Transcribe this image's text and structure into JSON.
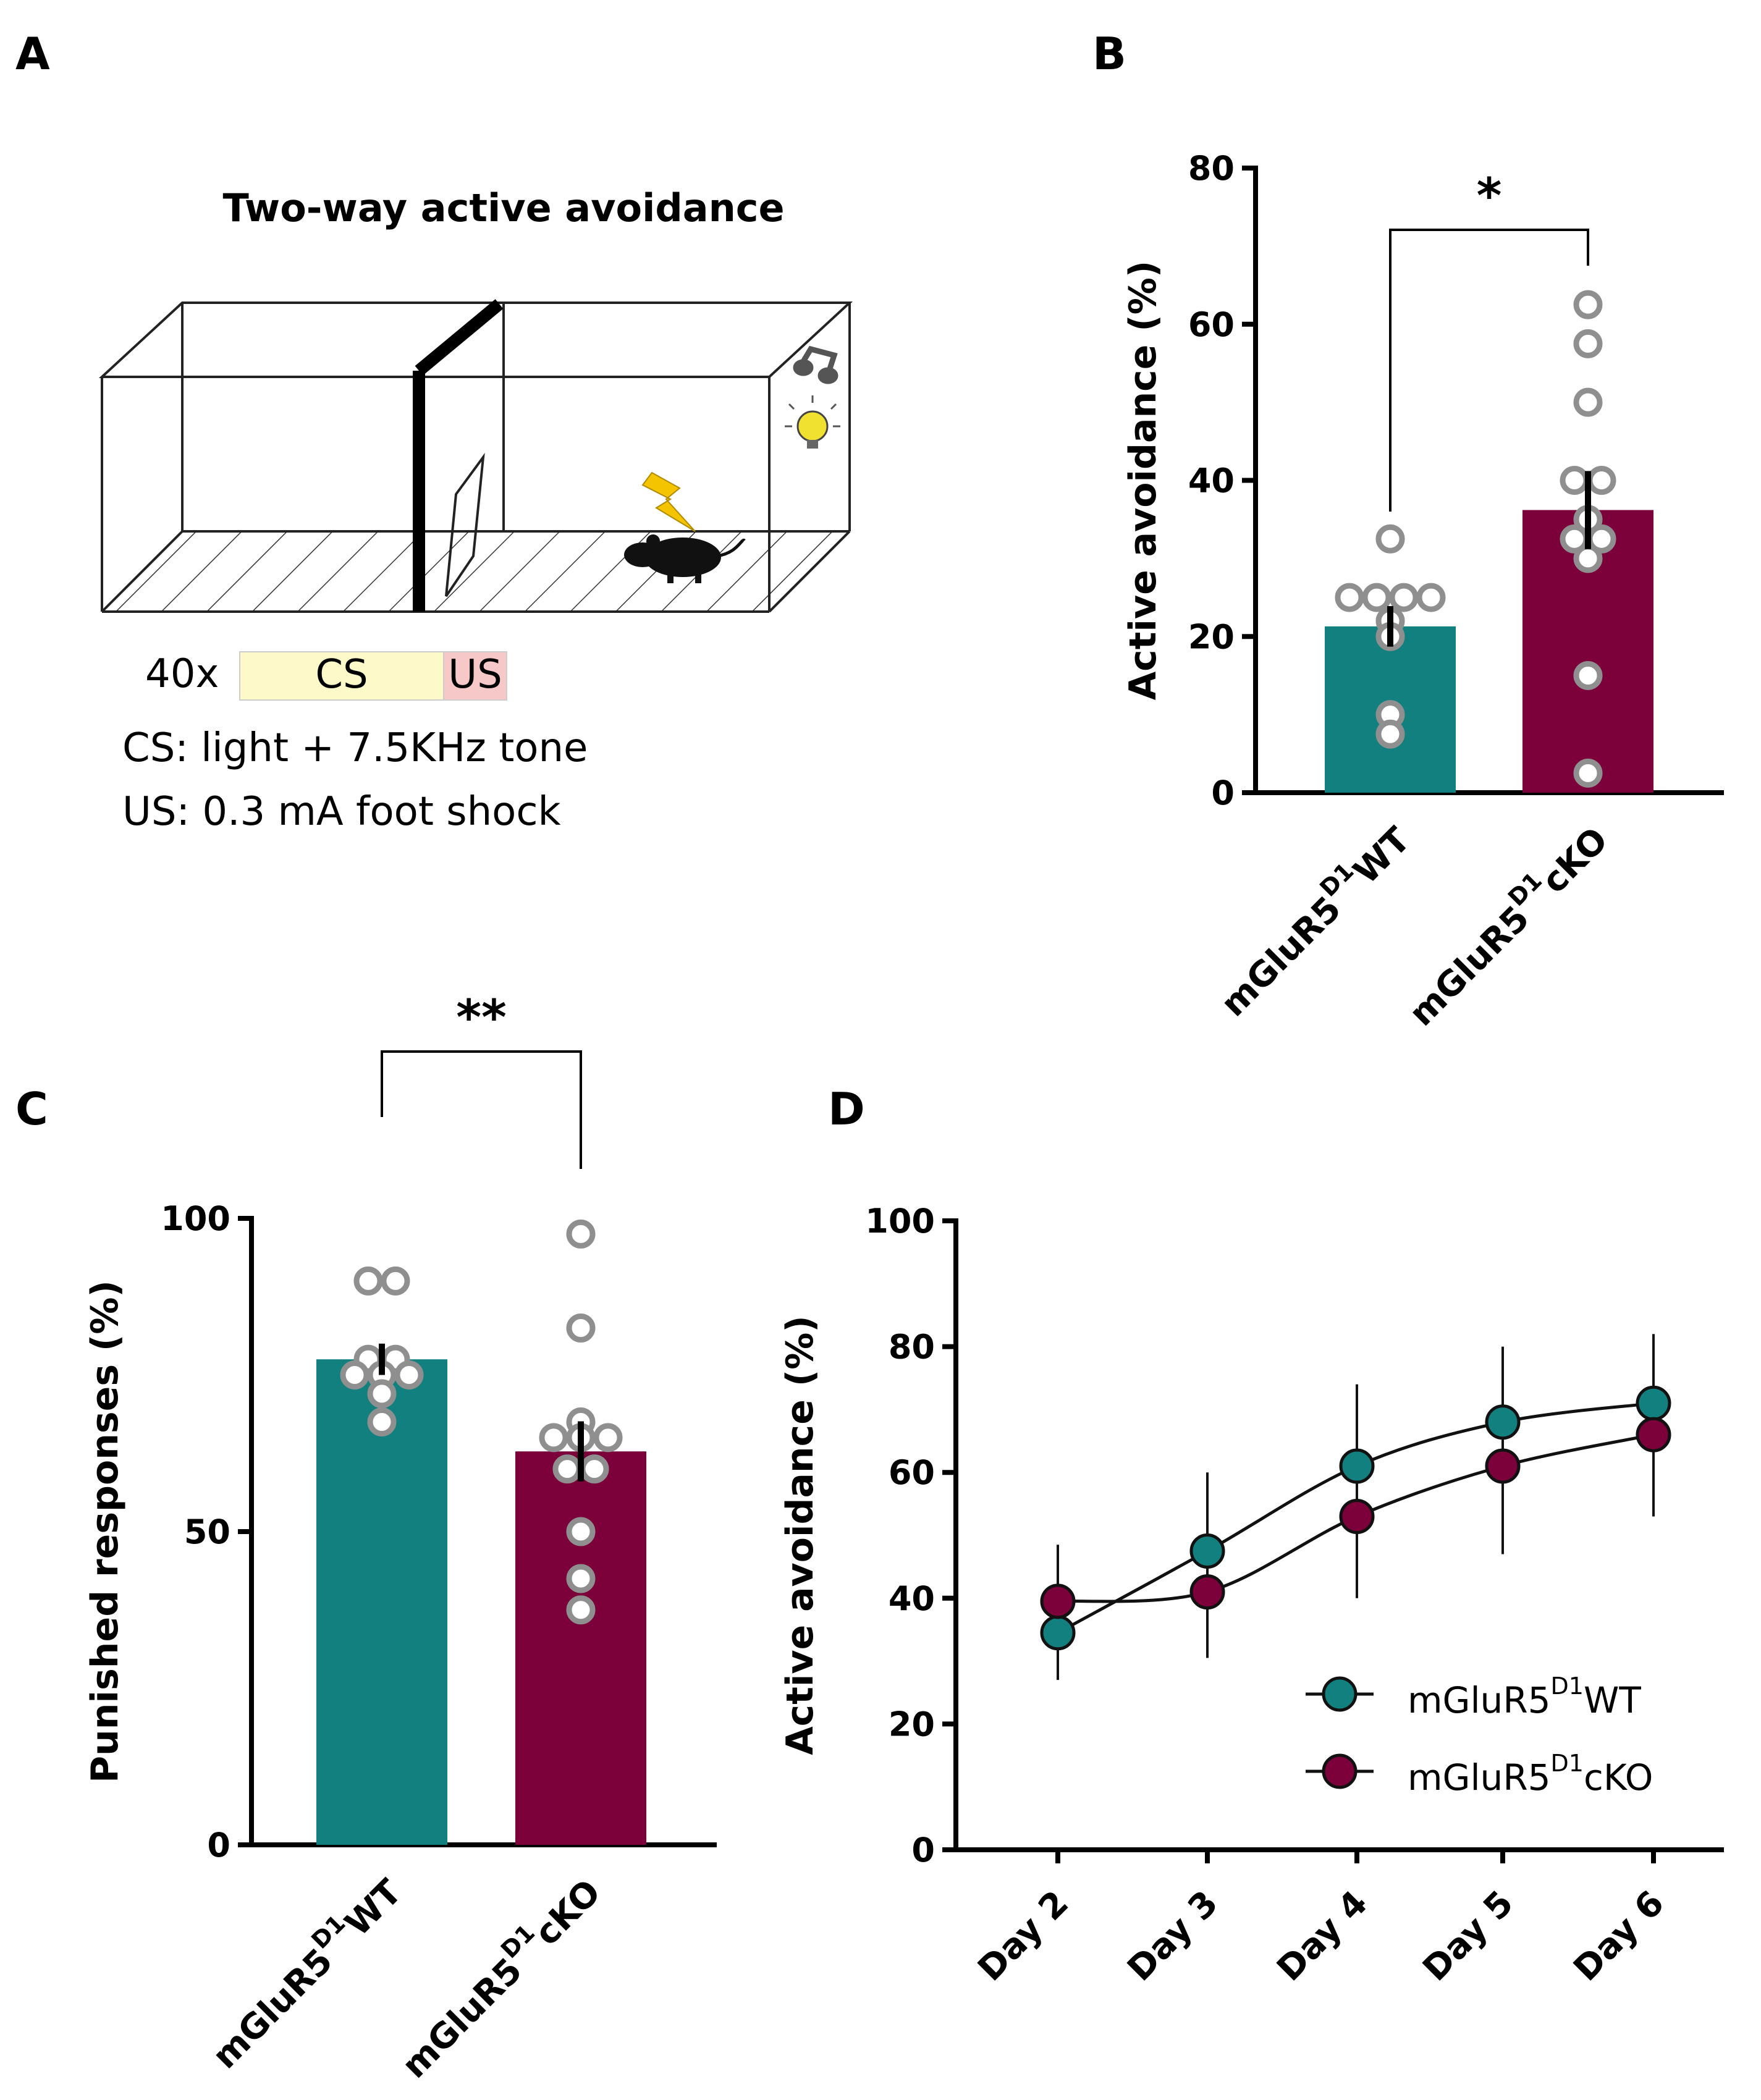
{
  "panel_labels": [
    "A",
    "B",
    "C",
    "D"
  ],
  "schematic": {
    "title": "Two-way active avoidance",
    "repeats": "40x",
    "cs_label": "CS",
    "us_label": "US",
    "cs_line": "CS: light + 7.5KHz tone",
    "us_line": "US: 0.3 mA foot shock",
    "cs_color": "#fdf9c8",
    "us_color": "#f6c8c8",
    "shock_color": "#f5c400",
    "bulb_color": "#f0e030"
  },
  "colors": {
    "wt": "#12807e",
    "cko": "#7c0039",
    "point_edge": "#8f8f8f"
  },
  "chart_data": [
    {
      "panel": "B",
      "type": "bar",
      "categories": [
        "WT",
        "cKO"
      ],
      "category_prefix": "mGluR5",
      "category_superscript": "D1",
      "values": [
        21.3,
        36.2
      ],
      "sem": [
        2.6,
        5.0
      ],
      "points": [
        [
          32.5,
          25,
          25,
          25,
          25,
          22,
          20,
          10,
          7.5
        ],
        [
          62.5,
          57.5,
          50,
          40,
          40,
          35,
          32.5,
          32.5,
          30,
          15,
          2.5
        ]
      ],
      "ylabel": "Active avoidance (%)",
      "ylim": [
        0,
        80
      ],
      "yticks": [
        0,
        20,
        40,
        60,
        80
      ],
      "significance": "*"
    },
    {
      "panel": "C",
      "type": "bar",
      "categories": [
        "WT",
        "cKO"
      ],
      "category_prefix": "mGluR5",
      "category_superscript": "D1",
      "values": [
        77.5,
        62.8
      ],
      "sem": [
        2.5,
        4.8
      ],
      "points": [
        [
          90,
          90,
          77.5,
          77.5,
          75,
          75,
          75,
          72,
          67.5
        ],
        [
          97.5,
          82.5,
          67.5,
          65,
          65,
          65,
          60,
          60,
          50,
          42.5,
          37.5
        ]
      ],
      "ylabel": "Punished responses (%)",
      "ylim": [
        0,
        100
      ],
      "yticks": [
        0,
        50,
        100
      ],
      "significance": "**"
    },
    {
      "panel": "D",
      "type": "line",
      "categories": [
        "Day 2",
        "Day 3",
        "Day 4",
        "Day 5",
        "Day 6"
      ],
      "series": [
        {
          "name": "WT",
          "prefix": "mGluR5",
          "superscript": "D1",
          "values": [
            34.5,
            47.5,
            61,
            68,
            71
          ],
          "err": [
            7.5,
            12.5,
            13,
            12,
            11
          ]
        },
        {
          "name": "cKO",
          "prefix": "mGluR5",
          "superscript": "D1",
          "values": [
            39.5,
            41,
            53,
            61,
            66
          ],
          "err": [
            9,
            10.5,
            13,
            14,
            13
          ]
        }
      ],
      "ylabel": "Active avoidance (%)",
      "ylim": [
        0,
        100
      ],
      "yticks": [
        0,
        20,
        40,
        60,
        80,
        100
      ],
      "legend_position": "bottom-right"
    }
  ]
}
